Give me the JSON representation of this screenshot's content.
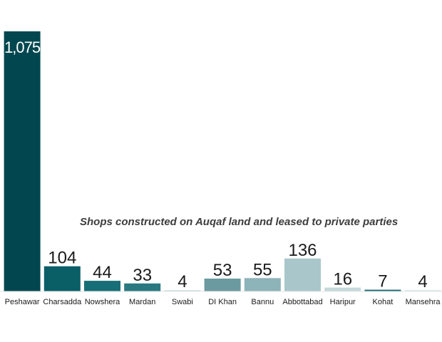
{
  "chart_data": {
    "type": "bar",
    "title": "Shops constructed on Auqaf land and leased to private parties",
    "xlabel": "",
    "ylabel": "",
    "categories": [
      "Peshawar",
      "Charsadda",
      "Nowshera",
      "Mardan",
      "Swabi",
      "DI Khan",
      "Bannu",
      "Abbottabad",
      "Haripur",
      "Kohat",
      "Mansehra"
    ],
    "values": [
      1075,
      104,
      44,
      33,
      4,
      53,
      55,
      136,
      16,
      7,
      4
    ],
    "value_labels": [
      "1,075",
      "104",
      "44",
      "33",
      "4",
      "53",
      "55",
      "136",
      "16",
      "7",
      "4"
    ],
    "colors": [
      "#02474f",
      "#0a5f67",
      "#176e76",
      "#2a7980",
      "#d5e3e4",
      "#6b9aa0",
      "#8db4b8",
      "#a9c7ca",
      "#c5d9db",
      "#1e6b74",
      "#dde8e9"
    ],
    "ylim": [
      0,
      1075
    ],
    "grid": false,
    "legend": "none"
  }
}
